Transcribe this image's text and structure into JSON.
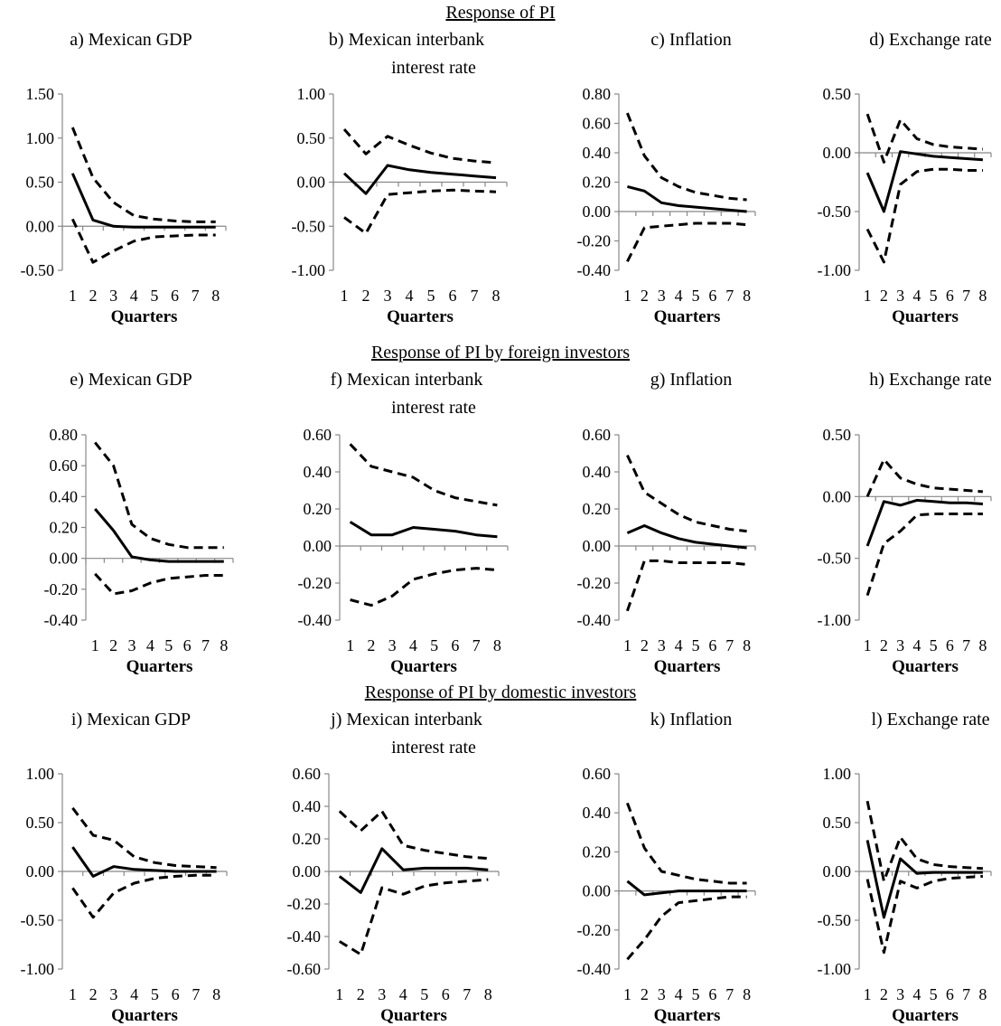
{
  "section_titles": [
    "Response of PI",
    "Response of PI by foreign investors",
    "Response of PI by domestic investors"
  ],
  "chart_data": [
    {
      "type": "line",
      "title": "a) Mexican GDP",
      "title2": "",
      "xlabel": "Quarters",
      "x": [
        1,
        2,
        3,
        4,
        5,
        6,
        7,
        8
      ],
      "ylim": [
        -0.5,
        1.5
      ],
      "yticks": [
        "1.50",
        "1.00",
        "0.50",
        "0.00",
        "-0.50"
      ],
      "ytick_values": [
        1.5,
        1.0,
        0.5,
        0.0,
        -0.5
      ],
      "series": [
        {
          "style": "solid",
          "values": [
            0.6,
            0.07,
            0.0,
            -0.01,
            -0.01,
            -0.01,
            -0.01,
            -0.01
          ]
        },
        {
          "style": "dashed",
          "values": [
            1.12,
            0.55,
            0.27,
            0.12,
            0.08,
            0.06,
            0.05,
            0.05
          ]
        },
        {
          "style": "dashed",
          "values": [
            0.08,
            -0.41,
            -0.28,
            -0.17,
            -0.12,
            -0.11,
            -0.1,
            -0.1
          ]
        }
      ]
    },
    {
      "type": "line",
      "title": "b) Mexican interbank",
      "title2": "interest rate",
      "xlabel": "Quarters",
      "x": [
        1,
        2,
        3,
        4,
        5,
        6,
        7,
        8
      ],
      "ylim": [
        -1.0,
        1.0
      ],
      "yticks": [
        "1.00",
        "0.50",
        "0.00",
        "-0.50",
        "-1.00"
      ],
      "ytick_values": [
        1.0,
        0.5,
        0.0,
        -0.5,
        -1.0
      ],
      "series": [
        {
          "style": "solid",
          "values": [
            0.1,
            -0.13,
            0.19,
            0.14,
            0.11,
            0.09,
            0.07,
            0.05
          ]
        },
        {
          "style": "dashed",
          "values": [
            0.6,
            0.32,
            0.52,
            0.42,
            0.33,
            0.27,
            0.24,
            0.22
          ]
        },
        {
          "style": "dashed",
          "values": [
            -0.4,
            -0.58,
            -0.14,
            -0.12,
            -0.1,
            -0.09,
            -0.1,
            -0.11
          ]
        }
      ]
    },
    {
      "type": "line",
      "title": "c) Inflation",
      "title2": "",
      "xlabel": "Quarters",
      "x": [
        1,
        2,
        3,
        4,
        5,
        6,
        7,
        8
      ],
      "ylim": [
        -0.4,
        0.8
      ],
      "yticks": [
        "0.80",
        "0.60",
        "0.40",
        "0.20",
        "0.00",
        "-0.20",
        "-0.40"
      ],
      "ytick_values": [
        0.8,
        0.6,
        0.4,
        0.2,
        0.0,
        -0.2,
        -0.4
      ],
      "series": [
        {
          "style": "solid",
          "values": [
            0.17,
            0.14,
            0.06,
            0.04,
            0.03,
            0.02,
            0.01,
            0.0
          ]
        },
        {
          "style": "dashed",
          "values": [
            0.67,
            0.38,
            0.23,
            0.17,
            0.13,
            0.11,
            0.09,
            0.08
          ]
        },
        {
          "style": "dashed",
          "values": [
            -0.34,
            -0.11,
            -0.1,
            -0.09,
            -0.08,
            -0.08,
            -0.08,
            -0.09
          ]
        }
      ]
    },
    {
      "type": "line",
      "title": "d) Exchange rate",
      "title2": "",
      "xlabel": "Quarters",
      "x": [
        1,
        2,
        3,
        4,
        5,
        6,
        7,
        8
      ],
      "ylim": [
        -1.0,
        0.5
      ],
      "yticks": [
        "0.50",
        "0.00",
        "-0.50",
        "-1.00"
      ],
      "ytick_values": [
        0.5,
        0.0,
        -0.5,
        -1.0
      ],
      "series": [
        {
          "style": "solid",
          "values": [
            -0.17,
            -0.5,
            0.01,
            -0.01,
            -0.03,
            -0.04,
            -0.05,
            -0.06
          ]
        },
        {
          "style": "dashed",
          "values": [
            0.33,
            -0.08,
            0.28,
            0.12,
            0.07,
            0.05,
            0.04,
            0.03
          ]
        },
        {
          "style": "dashed",
          "values": [
            -0.65,
            -0.93,
            -0.27,
            -0.16,
            -0.14,
            -0.14,
            -0.15,
            -0.15
          ]
        }
      ]
    },
    {
      "type": "line",
      "title": "e) Mexican GDP",
      "title2": "",
      "xlabel": "Quarters",
      "x": [
        1,
        2,
        3,
        4,
        5,
        6,
        7,
        8
      ],
      "ylim": [
        -0.4,
        0.8
      ],
      "yticks": [
        "0.80",
        "0.60",
        "0.40",
        "0.20",
        "0.00",
        "-0.20",
        "-0.40"
      ],
      "ytick_values": [
        0.8,
        0.6,
        0.4,
        0.2,
        0.0,
        -0.2,
        -0.4
      ],
      "series": [
        {
          "style": "solid",
          "values": [
            0.32,
            0.18,
            0.01,
            -0.01,
            -0.02,
            -0.02,
            -0.02,
            -0.02
          ]
        },
        {
          "style": "dashed",
          "values": [
            0.75,
            0.6,
            0.22,
            0.13,
            0.09,
            0.07,
            0.07,
            0.07
          ]
        },
        {
          "style": "dashed",
          "values": [
            -0.1,
            -0.23,
            -0.21,
            -0.16,
            -0.13,
            -0.12,
            -0.11,
            -0.11
          ]
        }
      ]
    },
    {
      "type": "line",
      "title": "f) Mexican interbank",
      "title2": "interest rate",
      "xlabel": "Quarters",
      "x": [
        1,
        2,
        3,
        4,
        5,
        6,
        7,
        8
      ],
      "ylim": [
        -0.4,
        0.6
      ],
      "yticks": [
        "0.60",
        "0.40",
        "0.20",
        "0.00",
        "-0.20",
        "-0.40"
      ],
      "ytick_values": [
        0.6,
        0.4,
        0.2,
        0.0,
        -0.2,
        -0.4
      ],
      "series": [
        {
          "style": "solid",
          "values": [
            0.13,
            0.06,
            0.06,
            0.1,
            0.09,
            0.08,
            0.06,
            0.05
          ]
        },
        {
          "style": "dashed",
          "values": [
            0.55,
            0.43,
            0.4,
            0.37,
            0.3,
            0.26,
            0.24,
            0.22
          ]
        },
        {
          "style": "dashed",
          "values": [
            -0.29,
            -0.32,
            -0.27,
            -0.18,
            -0.15,
            -0.13,
            -0.12,
            -0.13
          ]
        }
      ]
    },
    {
      "type": "line",
      "title": "g) Inflation",
      "title2": "",
      "xlabel": "Quarters",
      "x": [
        1,
        2,
        3,
        4,
        5,
        6,
        7,
        8
      ],
      "ylim": [
        -0.4,
        0.6
      ],
      "yticks": [
        "0.60",
        "0.40",
        "0.20",
        "0.00",
        "-0.20",
        "-0.40"
      ],
      "ytick_values": [
        0.6,
        0.4,
        0.2,
        0.0,
        -0.2,
        -0.4
      ],
      "series": [
        {
          "style": "solid",
          "values": [
            0.07,
            0.11,
            0.07,
            0.04,
            0.02,
            0.01,
            0.0,
            -0.01
          ]
        },
        {
          "style": "dashed",
          "values": [
            0.49,
            0.29,
            0.23,
            0.17,
            0.13,
            0.11,
            0.09,
            0.08
          ]
        },
        {
          "style": "dashed",
          "values": [
            -0.35,
            -0.08,
            -0.08,
            -0.09,
            -0.09,
            -0.09,
            -0.09,
            -0.1
          ]
        }
      ]
    },
    {
      "type": "line",
      "title": "h) Exchange rate",
      "title2": "",
      "xlabel": "Quarters",
      "x": [
        1,
        2,
        3,
        4,
        5,
        6,
        7,
        8
      ],
      "ylim": [
        -1.0,
        0.5
      ],
      "yticks": [
        "0.50",
        "0.00",
        "-0.50",
        "-1.00"
      ],
      "ytick_values": [
        0.5,
        0.0,
        -0.5,
        -1.0
      ],
      "series": [
        {
          "style": "solid",
          "values": [
            -0.4,
            -0.04,
            -0.07,
            -0.03,
            -0.04,
            -0.05,
            -0.05,
            -0.06
          ]
        },
        {
          "style": "dashed",
          "values": [
            0.0,
            0.3,
            0.15,
            0.1,
            0.07,
            0.06,
            0.05,
            0.04
          ]
        },
        {
          "style": "dashed",
          "values": [
            -0.8,
            -0.38,
            -0.28,
            -0.15,
            -0.14,
            -0.14,
            -0.14,
            -0.14
          ]
        }
      ]
    },
    {
      "type": "line",
      "title": "i) Mexican GDP",
      "title2": "",
      "xlabel": "Quarters",
      "x": [
        1,
        2,
        3,
        4,
        5,
        6,
        7,
        8
      ],
      "ylim": [
        -1.0,
        1.0
      ],
      "yticks": [
        "1.00",
        "0.50",
        "0.00",
        "-0.50",
        "-1.00"
      ],
      "ytick_values": [
        1.0,
        0.5,
        0.0,
        -0.5,
        -1.0
      ],
      "series": [
        {
          "style": "solid",
          "values": [
            0.25,
            -0.05,
            0.05,
            0.02,
            0.01,
            0.0,
            0.0,
            0.0
          ]
        },
        {
          "style": "dashed",
          "values": [
            0.65,
            0.37,
            0.32,
            0.15,
            0.09,
            0.06,
            0.05,
            0.04
          ]
        },
        {
          "style": "dashed",
          "values": [
            -0.17,
            -0.47,
            -0.22,
            -0.12,
            -0.07,
            -0.05,
            -0.04,
            -0.04
          ]
        }
      ]
    },
    {
      "type": "line",
      "title": "j) Mexican interbank",
      "title2": "interest rate",
      "xlabel": "Quarters",
      "x": [
        1,
        2,
        3,
        4,
        5,
        6,
        7,
        8
      ],
      "ylim": [
        -0.6,
        0.6
      ],
      "yticks": [
        "0.60",
        "0.40",
        "0.20",
        "0.00",
        "-0.20",
        "-0.40",
        "-0.60"
      ],
      "ytick_values": [
        0.6,
        0.4,
        0.2,
        0.0,
        -0.2,
        -0.4,
        -0.6
      ],
      "series": [
        {
          "style": "solid",
          "values": [
            -0.03,
            -0.13,
            0.14,
            0.01,
            0.02,
            0.02,
            0.02,
            0.01
          ]
        },
        {
          "style": "dashed",
          "values": [
            0.37,
            0.25,
            0.37,
            0.16,
            0.13,
            0.11,
            0.09,
            0.08
          ]
        },
        {
          "style": "dashed",
          "values": [
            -0.43,
            -0.51,
            -0.1,
            -0.14,
            -0.09,
            -0.07,
            -0.06,
            -0.05
          ]
        }
      ]
    },
    {
      "type": "line",
      "title": "k) Inflation",
      "title2": "",
      "xlabel": "Quarters",
      "x": [
        1,
        2,
        3,
        4,
        5,
        6,
        7,
        8
      ],
      "ylim": [
        -0.4,
        0.6
      ],
      "yticks": [
        "0.60",
        "0.40",
        "0.20",
        "0.00",
        "-0.20",
        "-0.40"
      ],
      "ytick_values": [
        0.6,
        0.4,
        0.2,
        0.0,
        -0.2,
        -0.4
      ],
      "series": [
        {
          "style": "solid",
          "values": [
            0.05,
            -0.02,
            -0.01,
            0.0,
            0.0,
            0.0,
            0.0,
            0.0
          ]
        },
        {
          "style": "dashed",
          "values": [
            0.45,
            0.22,
            0.1,
            0.08,
            0.06,
            0.05,
            0.04,
            0.04
          ]
        },
        {
          "style": "dashed",
          "values": [
            -0.35,
            -0.25,
            -0.13,
            -0.06,
            -0.05,
            -0.04,
            -0.03,
            -0.03
          ]
        }
      ]
    },
    {
      "type": "line",
      "title": "l) Exchange rate",
      "title2": "",
      "xlabel": "Quarters",
      "x": [
        1,
        2,
        3,
        4,
        5,
        6,
        7,
        8
      ],
      "ylim": [
        -1.0,
        1.0
      ],
      "yticks": [
        "1.00",
        "0.50",
        "0.00",
        "-0.50",
        "-1.00"
      ],
      "ytick_values": [
        1.0,
        0.5,
        0.0,
        -0.5,
        -1.0
      ],
      "series": [
        {
          "style": "solid",
          "values": [
            0.32,
            -0.47,
            0.13,
            -0.02,
            -0.01,
            -0.01,
            -0.01,
            -0.01
          ]
        },
        {
          "style": "dashed",
          "values": [
            0.72,
            -0.1,
            0.35,
            0.13,
            0.07,
            0.05,
            0.04,
            0.03
          ]
        },
        {
          "style": "dashed",
          "values": [
            -0.08,
            -0.83,
            -0.1,
            -0.17,
            -0.1,
            -0.07,
            -0.06,
            -0.05
          ]
        }
      ]
    }
  ]
}
